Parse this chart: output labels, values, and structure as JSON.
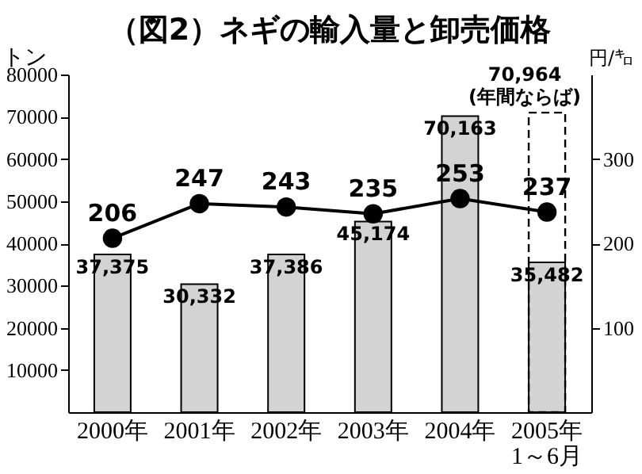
{
  "chart_data": {
    "type": "bar",
    "title": "（図2）ネギの輸入量と卸売価格",
    "ylabel": "トン",
    "y2label": "円/㌔",
    "categories": [
      "2000年",
      "2001年",
      "2002年",
      "2003年",
      "2004年",
      "2005年\n1～6月"
    ],
    "ylim": [
      0,
      80000
    ],
    "yticks": [
      10000,
      20000,
      30000,
      40000,
      50000,
      60000,
      70000,
      80000
    ],
    "y2lim": [
      0,
      400
    ],
    "y2ticks": [
      100,
      200,
      300
    ],
    "marker": "circle",
    "grid": false,
    "series": [
      {
        "color": "#d3d3d3",
        "values": [
          37375,
          30332,
          37386,
          45174,
          70163,
          35482
        ],
        "value_labels": [
          "37,375",
          "30,332",
          "37,386",
          "45,174",
          "70,163",
          "35,482"
        ]
      },
      {
        "color": "#000000",
        "line_style": "dashed",
        "values": [
          null,
          null,
          null,
          null,
          null,
          70964
        ],
        "value_labels": [
          null,
          null,
          null,
          null,
          null,
          "70,964\n(年間ならば)"
        ]
      },
      {
        "type": "line",
        "axis": "y2",
        "color": "#000000",
        "values": [
          206,
          247,
          243,
          235,
          253,
          237
        ],
        "value_labels": [
          "206",
          "247",
          "243",
          "235",
          "253",
          "237"
        ]
      }
    ]
  }
}
